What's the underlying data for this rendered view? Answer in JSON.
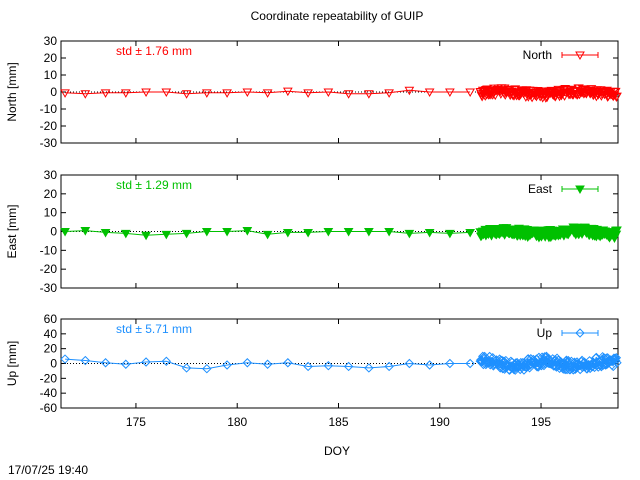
{
  "title": "Coordinate repeatability of GUIP",
  "xlabel": "DOY",
  "timestamp": "17/07/25 19:40",
  "x_range": [
    171.3,
    198.8
  ],
  "x_ticks": [
    175,
    180,
    185,
    190,
    195
  ],
  "chart_data": [
    {
      "type": "line",
      "name": "North",
      "ylabel": "North [mm]",
      "ylim": [
        -30,
        30
      ],
      "yticks": [
        30,
        20,
        10,
        0,
        -10,
        -20,
        -30
      ],
      "std_label": "std ± 1.76 mm",
      "color": "#ff0000",
      "marker": "triangle-down-open",
      "legend_position": "top-right",
      "daily": {
        "x": [
          171.5,
          172.5,
          173.5,
          174.5,
          175.5,
          176.5,
          177.5,
          178.5,
          179.5,
          180.5,
          181.5,
          182.5,
          183.5,
          184.5,
          185.5,
          186.5,
          187.5,
          188.5,
          189.5,
          190.5,
          191.5
        ],
        "y": [
          -0.5,
          -1,
          -0.5,
          -0.5,
          0,
          0,
          -1,
          -0.5,
          -0.5,
          0,
          -0.5,
          0.5,
          -0.5,
          0,
          -1,
          -1,
          -0.5,
          1,
          0,
          0,
          0
        ]
      }
    },
    {
      "type": "line",
      "name": "East",
      "ylabel": "East [mm]",
      "ylim": [
        -30,
        30
      ],
      "yticks": [
        30,
        20,
        10,
        0,
        -10,
        -20,
        -30
      ],
      "std_label": "std ± 1.29 mm",
      "color": "#00c000",
      "marker": "triangle-down-filled",
      "legend_position": "top-right",
      "daily": {
        "x": [
          171.5,
          172.5,
          173.5,
          174.5,
          175.5,
          176.5,
          177.5,
          178.5,
          179.5,
          180.5,
          181.5,
          182.5,
          183.5,
          184.5,
          185.5,
          186.5,
          187.5,
          188.5,
          189.5,
          190.5,
          191.5
        ],
        "y": [
          0,
          0.5,
          -0.5,
          -1,
          -2,
          -1.5,
          -1,
          0,
          0,
          0.5,
          -1.5,
          -0.5,
          -0.5,
          0,
          0,
          0,
          0,
          -1,
          -0.5,
          -1,
          -0.5
        ]
      }
    },
    {
      "type": "line",
      "name": "Up",
      "ylabel": "Up [mm]",
      "ylim": [
        -60,
        60
      ],
      "yticks": [
        60,
        40,
        20,
        0,
        -20,
        -40,
        -60
      ],
      "std_label": "std ± 5.71 mm",
      "color": "#1e90ff",
      "marker": "diamond-open",
      "legend_position": "top-right",
      "daily": {
        "x": [
          171.5,
          172.5,
          173.5,
          174.5,
          175.5,
          176.5,
          177.5,
          178.5,
          179.5,
          180.5,
          181.5,
          182.5,
          183.5,
          184.5,
          185.5,
          186.5,
          187.5,
          188.5,
          189.5,
          190.5,
          191.5
        ],
        "y": [
          6,
          4,
          1,
          -1,
          2,
          3,
          -6,
          -7,
          -2,
          1,
          -1,
          1,
          -4,
          -3,
          -4,
          -6,
          -4,
          0,
          -2,
          0,
          0
        ]
      }
    }
  ]
}
